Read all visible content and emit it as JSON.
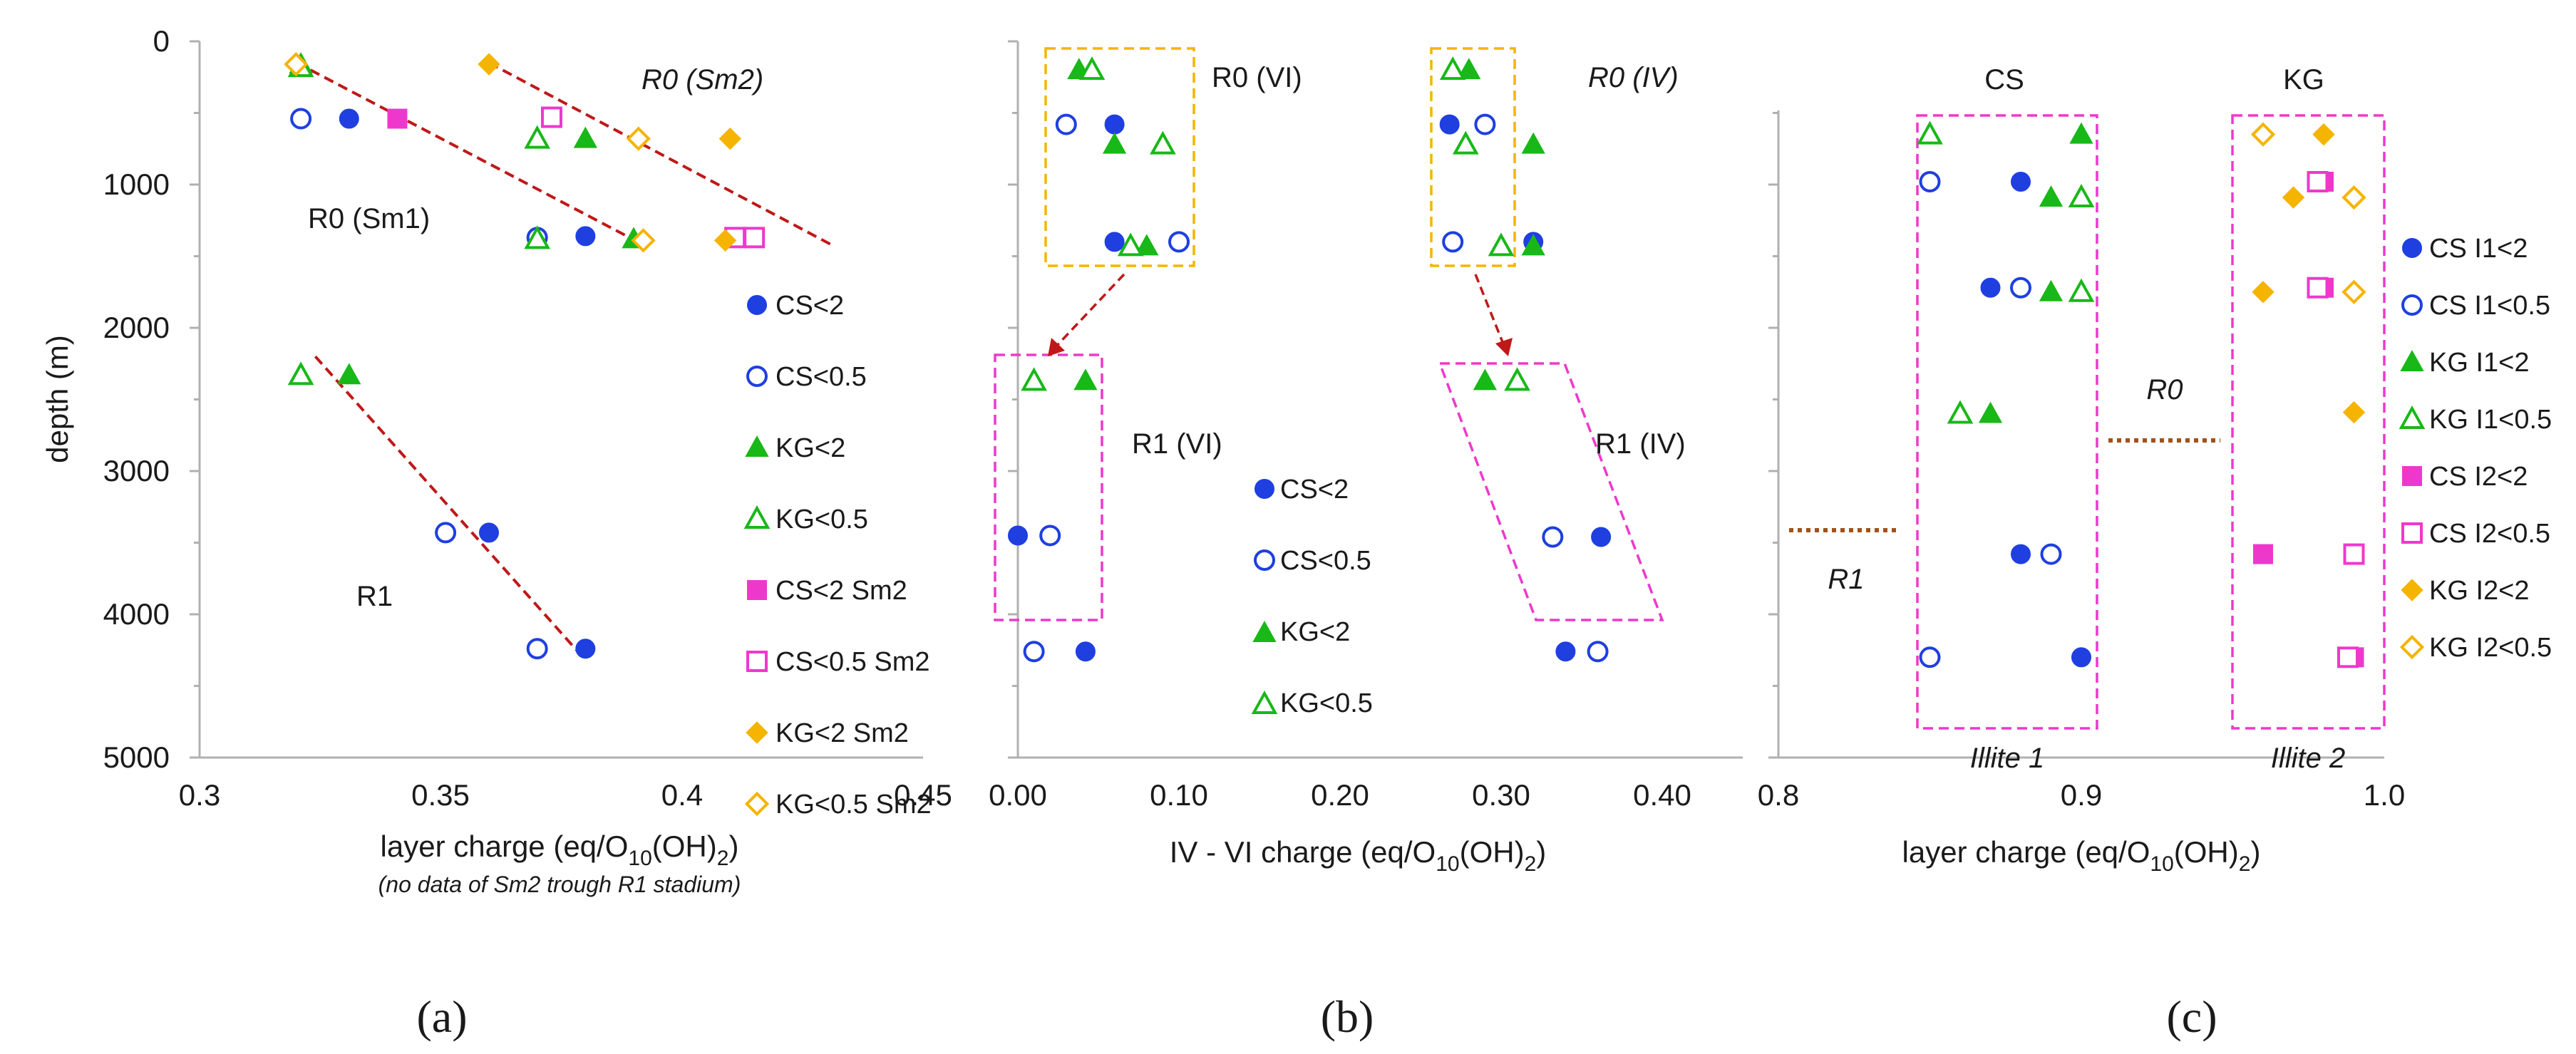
{
  "colors": {
    "blue": "#1f3fe0",
    "green": "#18b818",
    "magenta": "#ee38cc",
    "orange": "#f5b400",
    "red_dashed": "#c01818",
    "brown_dotted": "#a0521b",
    "axis": "#b0b0b0"
  },
  "panel_labels": [
    "(a)",
    "(b)",
    "(c)"
  ],
  "chart_data": [
    {
      "type": "scatter",
      "title": "(a)",
      "xlabel_parts": {
        "pre": "layer charge (eq/O",
        "sub1": "10",
        "mid": "(OH)",
        "sub2": "2",
        "post": ")"
      },
      "note": "(no data of Sm2 trough R1 stadium)",
      "ylabel": "depth (m)",
      "xlim": [
        0.3,
        0.45
      ],
      "ylim": [
        0,
        5000
      ],
      "yinverted": true,
      "x_ticks": [
        "0.3",
        "0.35",
        "0.4",
        "0.45"
      ],
      "y_ticks": [
        "0",
        "1000",
        "2000",
        "3000",
        "4000",
        "5000"
      ],
      "legend": [
        "CS<2",
        "CS<0.5",
        "KG<2",
        "KG<0.5",
        "CS<2 Sm2",
        "CS<0.5 Sm2",
        "KG<2 Sm2",
        "KG<0.5 Sm2"
      ],
      "annotations": [
        "R0 (Sm2)",
        "R0 (Sm1)",
        "R1"
      ],
      "series": [
        {
          "name": "CS<2",
          "marker": "circle",
          "filled": true,
          "color": "blue",
          "points": [
            [
              0.331,
              540
            ],
            [
              0.38,
              1360
            ],
            [
              0.36,
              3430
            ],
            [
              0.38,
              4240
            ]
          ]
        },
        {
          "name": "CS<0.5",
          "marker": "circle",
          "filled": false,
          "color": "blue",
          "points": [
            [
              0.321,
              540
            ],
            [
              0.37,
              1370
            ],
            [
              0.351,
              3430
            ],
            [
              0.37,
              4240
            ]
          ]
        },
        {
          "name": "KG<2",
          "marker": "triangle",
          "filled": true,
          "color": "green",
          "points": [
            [
              0.321,
              160
            ],
            [
              0.38,
              680
            ],
            [
              0.39,
              1380
            ],
            [
              0.331,
              2330
            ]
          ]
        },
        {
          "name": "KG<0.5",
          "marker": "triangle",
          "filled": false,
          "color": "green",
          "points": [
            [
              0.321,
              180
            ],
            [
              0.37,
              680
            ],
            [
              0.37,
              1380
            ],
            [
              0.321,
              2330
            ]
          ]
        },
        {
          "name": "CS<2 Sm2",
          "marker": "square",
          "filled": true,
          "color": "magenta",
          "points": [
            [
              0.341,
              540
            ]
          ]
        },
        {
          "name": "CS<0.5 Sm2",
          "marker": "square",
          "filled": false,
          "color": "magenta",
          "points": [
            [
              0.373,
              530
            ],
            [
              0.411,
              1370
            ],
            [
              0.415,
              1370
            ]
          ]
        },
        {
          "name": "KG<2 Sm2",
          "marker": "diamond",
          "filled": true,
          "color": "orange",
          "points": [
            [
              0.36,
              160
            ],
            [
              0.41,
              680
            ],
            [
              0.409,
              1390
            ]
          ]
        },
        {
          "name": "KG<0.5 Sm2",
          "marker": "diamond",
          "filled": false,
          "color": "orange",
          "points": [
            [
              0.32,
              160
            ],
            [
              0.391,
              680
            ],
            [
              0.392,
              1390
            ]
          ]
        }
      ],
      "trend_lines": [
        [
          [
            0.323,
            200
          ],
          [
            0.392,
            1420
          ]
        ],
        [
          [
            0.36,
            150
          ],
          [
            0.431,
            1420
          ]
        ],
        [
          [
            0.324,
            2200
          ],
          [
            0.38,
            4320
          ]
        ]
      ]
    },
    {
      "type": "scatter",
      "title": "(b)",
      "xlabel_parts": {
        "pre": "IV - VI charge (eq/O",
        "sub1": "10",
        "mid": "(OH)",
        "sub2": "2",
        "post": ")"
      },
      "xlim": [
        0.0,
        0.45
      ],
      "ylim": [
        0,
        5000
      ],
      "yinverted": true,
      "x_ticks": [
        "0.00",
        "0.10",
        "0.20",
        "0.30",
        "0.40"
      ],
      "legend": [
        "CS<2",
        "CS<0.5",
        "KG<2",
        "KG<0.5"
      ],
      "annotations": [
        "R0 (VI)",
        "R0 (IV)",
        "R1 (VI)",
        "R1 (IV)"
      ],
      "series": [
        {
          "name": "CS<2",
          "marker": "circle",
          "filled": true,
          "color": "blue",
          "points": [
            [
              0.06,
              580
            ],
            [
              0.06,
              1400
            ],
            [
              0.0,
              3450
            ],
            [
              0.042,
              4260
            ],
            [
              0.268,
              580
            ],
            [
              0.32,
              1400
            ],
            [
              0.362,
              3460
            ],
            [
              0.34,
              4260
            ]
          ]
        },
        {
          "name": "CS<0.5",
          "marker": "circle",
          "filled": false,
          "color": "blue",
          "points": [
            [
              0.03,
              580
            ],
            [
              0.1,
              1400
            ],
            [
              0.02,
              3450
            ],
            [
              0.01,
              4260
            ],
            [
              0.29,
              580
            ],
            [
              0.27,
              1400
            ],
            [
              0.332,
              3460
            ],
            [
              0.36,
              4260
            ]
          ]
        },
        {
          "name": "KG<2",
          "marker": "triangle",
          "filled": true,
          "color": "green",
          "points": [
            [
              0.038,
              200
            ],
            [
              0.06,
              720
            ],
            [
              0.08,
              1430
            ],
            [
              0.042,
              2370
            ],
            [
              0.28,
              200
            ],
            [
              0.32,
              720
            ],
            [
              0.32,
              1430
            ],
            [
              0.29,
              2370
            ]
          ]
        },
        {
          "name": "KG<0.5",
          "marker": "triangle",
          "filled": false,
          "color": "green",
          "points": [
            [
              0.046,
              200
            ],
            [
              0.09,
              720
            ],
            [
              0.07,
              1430
            ],
            [
              0.01,
              2370
            ],
            [
              0.27,
              200
            ],
            [
              0.278,
              720
            ],
            [
              0.3,
              1430
            ],
            [
              0.31,
              2370
            ]
          ]
        }
      ]
    },
    {
      "type": "scatter",
      "title": "(c)",
      "xlabel_parts": {
        "pre": "layer charge (eq/O",
        "sub1": "10",
        "mid": "(OH)",
        "sub2": "2",
        "post": ")"
      },
      "xlim": [
        0.8,
        1.0
      ],
      "ylim": [
        0,
        5000
      ],
      "yinverted": true,
      "x_ticks": [
        "0.8",
        "0.9",
        "1.0"
      ],
      "legend": [
        "CS I1<2",
        "CS I1<0.5",
        "KG I1<2",
        "KG I1<0.5",
        "CS I2<2",
        "CS I2<0.5",
        "KG I2<2",
        "KG I2<0.5"
      ],
      "annotations": [
        "CS",
        "KG",
        "R0",
        "R1",
        "Illite 1",
        "Illite 2"
      ],
      "series": [
        {
          "name": "CS I1<2",
          "marker": "circle",
          "filled": true,
          "color": "blue",
          "points": [
            [
              0.88,
              980
            ],
            [
              0.87,
              1720
            ],
            [
              0.88,
              3580
            ],
            [
              0.9,
              4300
            ]
          ]
        },
        {
          "name": "CS I1<0.5",
          "marker": "circle",
          "filled": false,
          "color": "blue",
          "points": [
            [
              0.85,
              980
            ],
            [
              0.88,
              1720
            ],
            [
              0.89,
              3580
            ],
            [
              0.85,
              4300
            ]
          ]
        },
        {
          "name": "KG I1<2",
          "marker": "triangle",
          "filled": true,
          "color": "green",
          "points": [
            [
              0.9,
              650
            ],
            [
              0.89,
              1090
            ],
            [
              0.89,
              1750
            ],
            [
              0.87,
              2600
            ]
          ]
        },
        {
          "name": "KG I1<0.5",
          "marker": "triangle",
          "filled": false,
          "color": "green",
          "points": [
            [
              0.85,
              650
            ],
            [
              0.9,
              1090
            ],
            [
              0.9,
              1750
            ],
            [
              0.86,
              2600
            ]
          ]
        },
        {
          "name": "CS I2<2",
          "marker": "square",
          "filled": true,
          "color": "magenta",
          "points": [
            [
              0.98,
              980
            ],
            [
              0.98,
              1720
            ],
            [
              0.96,
              3580
            ],
            [
              0.99,
              4300
            ]
          ]
        },
        {
          "name": "CS I2<0.5",
          "marker": "square",
          "filled": false,
          "color": "magenta",
          "points": [
            [
              0.978,
              980
            ],
            [
              0.978,
              1720
            ],
            [
              0.99,
              3580
            ],
            [
              0.988,
              4300
            ]
          ]
        },
        {
          "name": "KG I2<2",
          "marker": "diamond",
          "filled": true,
          "color": "orange",
          "points": [
            [
              0.98,
              650
            ],
            [
              0.97,
              1090
            ],
            [
              0.96,
              1750
            ],
            [
              0.99,
              2590
            ]
          ]
        },
        {
          "name": "KG I2<0.5",
          "marker": "diamond",
          "filled": false,
          "color": "orange",
          "points": [
            [
              0.96,
              650
            ],
            [
              0.99,
              1090
            ],
            [
              0.99,
              1750
            ]
          ]
        }
      ]
    }
  ]
}
